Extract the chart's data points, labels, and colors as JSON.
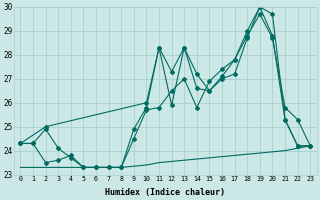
{
  "xlabel": "Humidex (Indice chaleur)",
  "bg_color": "#cce8e6",
  "grid_color": "#aacfcd",
  "line_color": "#006b60",
  "xlim": [
    -0.5,
    23.5
  ],
  "ylim": [
    23,
    30
  ],
  "yticks": [
    23,
    24,
    25,
    26,
    27,
    28,
    29,
    30
  ],
  "xticks": [
    0,
    1,
    2,
    3,
    4,
    5,
    6,
    7,
    8,
    9,
    10,
    11,
    12,
    13,
    14,
    15,
    16,
    17,
    18,
    19,
    20,
    21,
    22,
    23
  ],
  "series_zigzag_x": [
    0,
    1,
    2,
    3,
    4,
    5,
    6,
    7,
    8,
    9,
    10,
    11,
    12,
    13,
    14,
    15,
    16,
    17,
    18,
    19,
    20,
    21,
    22,
    23
  ],
  "series_zigzag_y": [
    24.3,
    24.3,
    24.9,
    24.1,
    23.7,
    23.3,
    23.3,
    23.3,
    23.3,
    24.9,
    25.8,
    28.3,
    25.9,
    28.3,
    27.2,
    26.5,
    27.0,
    27.2,
    28.7,
    30.0,
    29.7,
    25.3,
    24.2,
    24.2
  ],
  "series_straight1_x": [
    0,
    2,
    10,
    11,
    12,
    13,
    14,
    15,
    16,
    17,
    18,
    19,
    20,
    21,
    22,
    23
  ],
  "series_straight1_y": [
    24.3,
    25.0,
    26.0,
    28.3,
    27.3,
    28.3,
    26.6,
    26.5,
    27.1,
    27.8,
    29.0,
    30.0,
    28.8,
    25.3,
    24.2,
    24.2
  ],
  "series_straight2_x": [
    0,
    1,
    2,
    3,
    4,
    5,
    6,
    7,
    8,
    9,
    10,
    11,
    12,
    13,
    14,
    15,
    16,
    17,
    18,
    19,
    20,
    21,
    22,
    23
  ],
  "series_straight2_y": [
    24.3,
    24.3,
    23.5,
    23.6,
    23.8,
    23.3,
    23.3,
    23.3,
    23.3,
    24.5,
    25.7,
    25.8,
    26.5,
    27.0,
    25.8,
    26.9,
    27.4,
    27.8,
    28.8,
    29.7,
    28.7,
    25.8,
    25.3,
    24.2
  ],
  "series_flat_x": [
    0,
    1,
    2,
    3,
    4,
    5,
    6,
    7,
    8,
    9,
    10,
    11,
    12,
    13,
    14,
    15,
    16,
    17,
    18,
    19,
    20,
    21,
    22,
    23
  ],
  "series_flat_y": [
    23.3,
    23.3,
    23.3,
    23.3,
    23.3,
    23.3,
    23.3,
    23.3,
    23.3,
    23.35,
    23.4,
    23.5,
    23.55,
    23.6,
    23.65,
    23.7,
    23.75,
    23.8,
    23.85,
    23.9,
    23.95,
    24.0,
    24.1,
    24.2
  ]
}
